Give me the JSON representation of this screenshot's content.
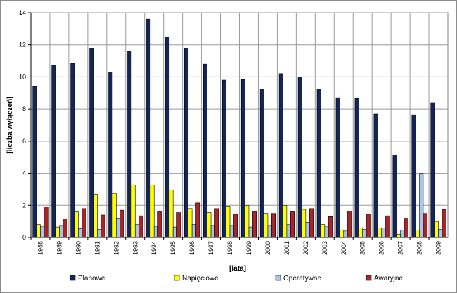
{
  "chart_data": {
    "type": "bar",
    "xlabel": "[lata]",
    "ylabel": "[liczba wyłączeń]",
    "ylim": [
      0,
      14
    ],
    "yticks": [
      0,
      2,
      4,
      6,
      8,
      10,
      12,
      14
    ],
    "grid": true,
    "legend_position": "bottom",
    "categories": [
      "1988",
      "1989",
      "1990",
      "1991",
      "1992",
      "1993",
      "1994",
      "1995",
      "1996",
      "1997",
      "1998",
      "1999",
      "2000",
      "2001",
      "2002",
      "2003",
      "2004",
      "2005",
      "2006",
      "2007",
      "2008",
      "2009"
    ],
    "series": [
      {
        "name": "Planowe",
        "color": "#14255a",
        "values": [
          9.4,
          10.75,
          10.85,
          11.75,
          10.3,
          11.6,
          13.6,
          12.5,
          11.8,
          10.8,
          9.8,
          9.85,
          9.25,
          10.2,
          10.0,
          9.25,
          8.7,
          8.65,
          7.7,
          5.1,
          7.65,
          8.4
        ]
      },
      {
        "name": "Napięciowe",
        "color": "#ffff00",
        "values": [
          0.8,
          0.65,
          1.6,
          2.7,
          2.75,
          3.25,
          3.25,
          2.95,
          1.8,
          1.55,
          1.95,
          2.0,
          1.5,
          2.0,
          1.75,
          0.8,
          0.45,
          0.6,
          0.6,
          0.2,
          0.45,
          1.0
        ]
      },
      {
        "name": "Operatywne",
        "color": "#a6c8ea",
        "values": [
          0.7,
          0.75,
          0.55,
          0.5,
          1.2,
          0.8,
          0.7,
          0.65,
          0.8,
          0.75,
          0.75,
          0.65,
          0.75,
          0.8,
          0.95,
          0.7,
          0.4,
          0.5,
          0.6,
          0.45,
          4.0,
          0.5
        ]
      },
      {
        "name": "Awaryjne",
        "color": "#a8262a",
        "values": [
          1.9,
          1.15,
          1.8,
          1.4,
          1.7,
          1.35,
          1.6,
          1.55,
          2.15,
          1.8,
          1.45,
          1.6,
          1.5,
          1.6,
          1.8,
          1.3,
          1.65,
          1.45,
          1.35,
          1.2,
          1.5,
          1.75
        ]
      }
    ]
  }
}
